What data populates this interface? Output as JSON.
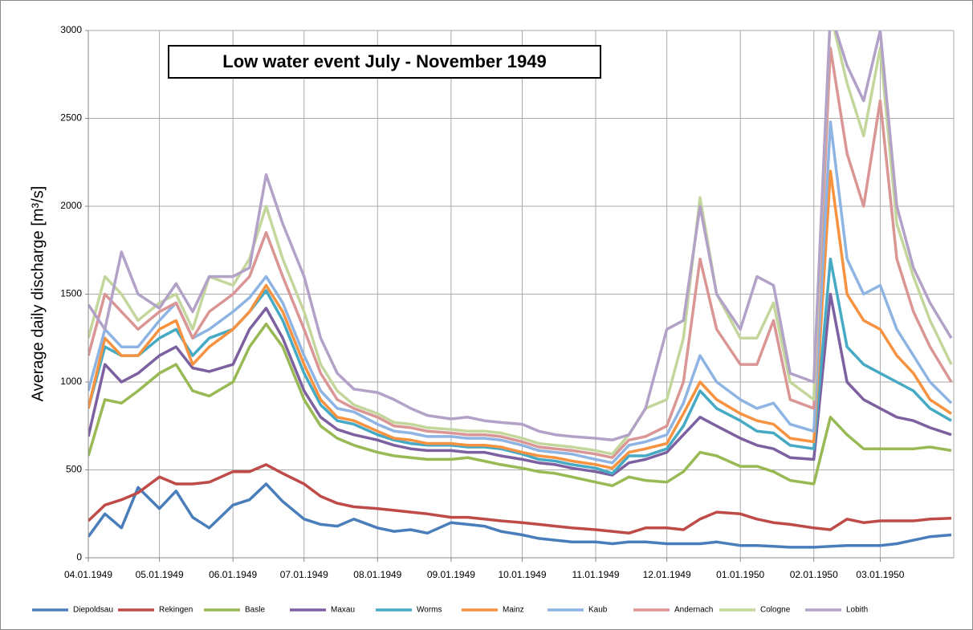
{
  "chart_data": {
    "type": "line",
    "title": "Low water event  July - November 1949",
    "y_label": "Average daily discharge [m³/s]",
    "x": [
      "04.01.1949",
      "04.08.1949",
      "04.15.1949",
      "04.22.1949",
      "05.01.1949",
      "05.08.1949",
      "05.15.1949",
      "05.22.1949",
      "06.01.1949",
      "06.08.1949",
      "06.15.1949",
      "06.22.1949",
      "07.01.1949",
      "07.08.1949",
      "07.15.1949",
      "07.22.1949",
      "08.01.1949",
      "08.08.1949",
      "08.15.1949",
      "08.22.1949",
      "09.01.1949",
      "09.08.1949",
      "09.15.1949",
      "09.22.1949",
      "10.01.1949",
      "10.08.1949",
      "10.15.1949",
      "10.22.1949",
      "11.01.1949",
      "11.08.1949",
      "11.15.1949",
      "11.22.1949",
      "12.01.1949",
      "12.08.1949",
      "12.15.1949",
      "12.22.1949",
      "01.01.1950",
      "01.08.1950",
      "01.15.1950",
      "01.22.1950",
      "02.01.1950",
      "02.08.1950",
      "02.15.1950",
      "02.22.1950",
      "03.01.1950",
      "03.08.1950",
      "03.15.1950",
      "03.22.1950",
      "03.31.1950"
    ],
    "xlim": [
      "04.01.1949",
      "04.01.1950"
    ],
    "xticks": [
      "04.01.1949",
      "05.01.1949",
      "06.01.1949",
      "07.01.1949",
      "08.01.1949",
      "09.01.1949",
      "10.01.1949",
      "11.01.1949",
      "12.01.1949",
      "01.01.1950",
      "02.01.1950",
      "03.01.1950"
    ],
    "ylim": [
      0,
      3000
    ],
    "yticks": [
      0,
      500,
      1000,
      1500,
      2000,
      2500,
      3000
    ],
    "grid": true,
    "legend": "bottom",
    "series": [
      {
        "name": "Diepoldsau",
        "color": "#4a7ebb",
        "values": [
          120,
          250,
          170,
          400,
          280,
          380,
          230,
          170,
          300,
          330,
          420,
          320,
          220,
          190,
          180,
          220,
          170,
          150,
          160,
          140,
          200,
          190,
          180,
          150,
          130,
          110,
          100,
          90,
          90,
          80,
          90,
          90,
          80,
          80,
          80,
          90,
          70,
          70,
          65,
          60,
          60,
          65,
          70,
          70,
          70,
          80,
          100,
          120,
          130
        ]
      },
      {
        "name": "Rekingen",
        "color": "#be4b48",
        "values": [
          210,
          300,
          330,
          370,
          460,
          420,
          420,
          430,
          490,
          490,
          530,
          480,
          420,
          350,
          310,
          290,
          280,
          270,
          260,
          250,
          230,
          230,
          220,
          210,
          200,
          190,
          180,
          170,
          160,
          150,
          140,
          170,
          170,
          160,
          220,
          260,
          250,
          220,
          200,
          190,
          170,
          160,
          220,
          200,
          210,
          210,
          210,
          220,
          225
        ]
      },
      {
        "name": "Basle",
        "color": "#98b954",
        "values": [
          580,
          900,
          880,
          950,
          1050,
          1100,
          950,
          920,
          1000,
          1200,
          1330,
          1200,
          900,
          750,
          680,
          640,
          600,
          580,
          570,
          560,
          560,
          570,
          550,
          530,
          510,
          490,
          480,
          460,
          430,
          410,
          460,
          440,
          430,
          490,
          600,
          580,
          520,
          520,
          490,
          440,
          420,
          800,
          700,
          620,
          620,
          620,
          620,
          630,
          610
        ]
      },
      {
        "name": "Maxau",
        "color": "#7d60a0",
        "values": [
          690,
          1100,
          1000,
          1050,
          1150,
          1200,
          1080,
          1060,
          1100,
          1300,
          1420,
          1250,
          950,
          800,
          730,
          700,
          670,
          640,
          620,
          610,
          610,
          600,
          600,
          580,
          560,
          540,
          530,
          510,
          490,
          470,
          540,
          560,
          600,
          700,
          800,
          750,
          680,
          640,
          620,
          570,
          560,
          1500,
          1000,
          900,
          850,
          800,
          780,
          740,
          700
        ]
      },
      {
        "name": "Worms",
        "color": "#46aac5",
        "values": [
          850,
          1200,
          1150,
          1150,
          1250,
          1300,
          1150,
          1250,
          1300,
          1400,
          1520,
          1350,
          1050,
          870,
          780,
          760,
          700,
          670,
          650,
          640,
          640,
          630,
          630,
          620,
          590,
          560,
          550,
          530,
          510,
          480,
          580,
          580,
          620,
          750,
          950,
          850,
          780,
          720,
          710,
          640,
          620,
          1700,
          1200,
          1100,
          1050,
          1000,
          950,
          850,
          780
        ]
      },
      {
        "name": "Mainz",
        "color": "#f69240",
        "values": [
          850,
          1250,
          1150,
          1150,
          1300,
          1350,
          1100,
          1200,
          1300,
          1400,
          1550,
          1400,
          1100,
          900,
          800,
          780,
          720,
          680,
          670,
          650,
          650,
          640,
          640,
          630,
          600,
          580,
          570,
          550,
          530,
          510,
          600,
          620,
          650,
          820,
          1000,
          900,
          820,
          780,
          760,
          680,
          660,
          2200,
          1500,
          1350,
          1300,
          1150,
          1050,
          900,
          820
        ]
      },
      {
        "name": "Kaub",
        "color": "#8eb4e3",
        "values": [
          950,
          1300,
          1200,
          1200,
          1350,
          1450,
          1250,
          1300,
          1400,
          1480,
          1600,
          1450,
          1150,
          950,
          850,
          830,
          760,
          720,
          710,
          690,
          690,
          680,
          680,
          670,
          640,
          610,
          600,
          590,
          560,
          540,
          640,
          660,
          700,
          880,
          1150,
          1000,
          900,
          850,
          880,
          760,
          720,
          2480,
          1700,
          1500,
          1550,
          1300,
          1150,
          1000,
          880
        ]
      },
      {
        "name": "Andernach",
        "color": "#d99694",
        "values": [
          1150,
          1500,
          1400,
          1300,
          1400,
          1450,
          1250,
          1400,
          1500,
          1600,
          1850,
          1600,
          1300,
          1050,
          900,
          850,
          800,
          750,
          740,
          720,
          710,
          700,
          700,
          690,
          660,
          630,
          620,
          610,
          590,
          570,
          670,
          690,
          750,
          1000,
          1700,
          1300,
          1100,
          1100,
          1350,
          900,
          850,
          2900,
          2300,
          2000,
          2600,
          1700,
          1400,
          1200,
          1000
        ]
      },
      {
        "name": "Cologne",
        "color": "#c3d69b",
        "values": [
          1250,
          1600,
          1500,
          1350,
          1450,
          1500,
          1300,
          1600,
          1550,
          1700,
          2000,
          1700,
          1400,
          1100,
          950,
          870,
          820,
          770,
          760,
          740,
          730,
          720,
          720,
          710,
          680,
          650,
          640,
          630,
          610,
          590,
          700,
          850,
          900,
          1250,
          2050,
          1500,
          1250,
          1250,
          1450,
          1000,
          900,
          3100,
          2700,
          2400,
          2900,
          1900,
          1600,
          1350,
          1100
        ]
      },
      {
        "name": "Lobith",
        "color": "#b3a2c7",
        "values": [
          1440,
          1300,
          1740,
          1500,
          1420,
          1560,
          1400,
          1600,
          1600,
          1650,
          2180,
          1900,
          1600,
          1250,
          1050,
          960,
          940,
          900,
          850,
          810,
          790,
          800,
          780,
          770,
          760,
          720,
          700,
          690,
          680,
          670,
          700,
          850,
          1300,
          1350,
          2000,
          1500,
          1300,
          1600,
          1550,
          1050,
          1000,
          3100,
          2800,
          2600,
          3000,
          2000,
          1650,
          1450,
          1250
        ]
      }
    ]
  }
}
